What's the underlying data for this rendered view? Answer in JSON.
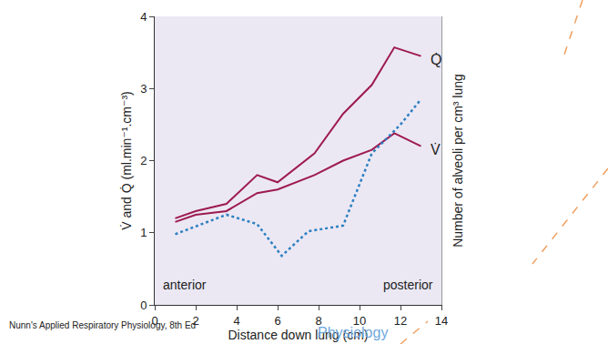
{
  "chart_data": {
    "type": "line",
    "xlabel": "Distance down lung (cm)",
    "ylabel": "V̇ and Q̇ (ml.min⁻¹.cm⁻³)",
    "y2label": "Number of alveoli per cm³ lung",
    "xlim": [
      0,
      14
    ],
    "xticks": [
      0,
      2,
      4,
      6,
      8,
      10,
      12,
      14
    ],
    "ylim": [
      0,
      4
    ],
    "yticks": [
      0,
      1,
      2,
      3,
      4
    ],
    "y2lim": [
      0,
      4
    ],
    "y2ticks": [],
    "grid": false,
    "region_labels": [
      "anterior",
      "posterior"
    ],
    "source": "Nunn's Applied Respiratory Physiology, 8th Ed",
    "watermark": "Physiology",
    "series": [
      {
        "name": "Q̇",
        "color": "#9e1a4f",
        "line_style": "solid",
        "x": [
          1,
          2,
          3.5,
          5,
          6,
          7.8,
          9.2,
          10.6,
          11.7,
          13
        ],
        "values": [
          1.2,
          1.3,
          1.4,
          1.8,
          1.7,
          2.1,
          2.65,
          3.05,
          3.57,
          3.45
        ]
      },
      {
        "name": "V̇",
        "color": "#9e1a4f",
        "line_style": "solid",
        "x": [
          1,
          2,
          3.5,
          5,
          6,
          7.8,
          9.2,
          10.6,
          11.7,
          13
        ],
        "values": [
          1.15,
          1.25,
          1.3,
          1.55,
          1.6,
          1.8,
          2.0,
          2.15,
          2.38,
          2.2
        ]
      },
      {
        "color": "#2e7fc0",
        "line_style": "dotted",
        "axis": "y2",
        "x": [
          1,
          3.5,
          5,
          6.2,
          7.5,
          9.2,
          10.6,
          12,
          13
        ],
        "values": [
          0.98,
          1.25,
          1.12,
          0.68,
          1.02,
          1.1,
          2.1,
          2.5,
          2.85
        ]
      }
    ]
  }
}
